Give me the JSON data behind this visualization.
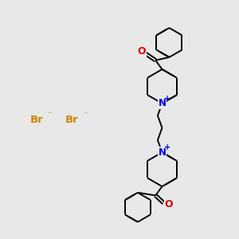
{
  "background_color": "#e8e8e8",
  "line_color": "#000000",
  "nitrogen_color": "#0000dd",
  "oxygen_color": "#dd0000",
  "bromine_color": "#cc8800",
  "lw": 1.4,
  "dbo": 0.055,
  "figsize": [
    3.0,
    3.0
  ],
  "dpi": 100,
  "xlim": [
    0,
    10
  ],
  "ylim": [
    0,
    10
  ]
}
